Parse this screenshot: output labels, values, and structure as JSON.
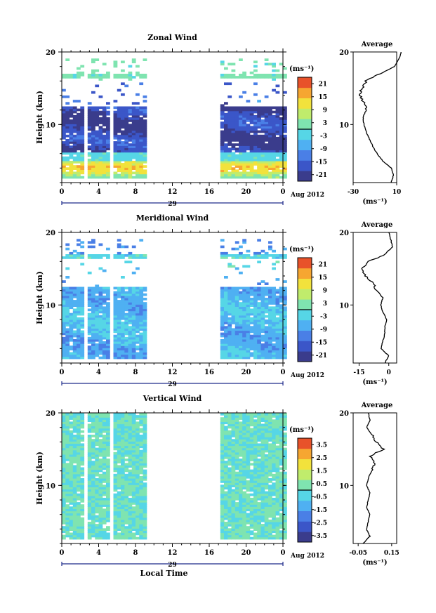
{
  "chart_data": [
    {
      "type": "heatmap",
      "title": "Zonal Wind",
      "ylabel": "Height (km)",
      "units": "(ms⁻¹)",
      "xticks": [
        "0",
        "4",
        "8",
        "12",
        "16",
        "20",
        "0"
      ],
      "xlim": [
        0,
        24
      ],
      "ylim": [
        2,
        20
      ],
      "yticks": [
        "20",
        "10"
      ],
      "date_label": "Aug 2012",
      "day_label": "29",
      "colorbar": {
        "min": -24,
        "max": 24,
        "ticks": [
          "21",
          "15",
          "9",
          "3",
          "-3",
          "-9",
          "-15",
          "-21"
        ]
      },
      "data_gaps_hours": [
        [
          2.4,
          2.6
        ],
        [
          5.2,
          5.6
        ],
        [
          9.0,
          17.2
        ]
      ],
      "structure": "Strong westerly (positive) winds 3-5 km, transitioning through zero near 5 km to strong easterlies (about -20 to -24 ms⁻¹) from 6 to 12 km, weak near-zero band near 16-17 km",
      "average_profile": {
        "title": "Average",
        "xlabel": "(ms⁻¹)",
        "xticks": [
          "-30",
          "10"
        ],
        "xlim": [
          -30,
          10
        ],
        "yticks": [
          "20",
          "10"
        ],
        "height_km": [
          2,
          3,
          4,
          5,
          6,
          7,
          8,
          9,
          10,
          11,
          12,
          13,
          14,
          15,
          16,
          17,
          18,
          19,
          20
        ],
        "values": [
          5,
          7,
          5,
          -3,
          -8,
          -12,
          -15,
          -18,
          -20,
          -21,
          -18,
          -20,
          -24,
          -22,
          -18,
          -5,
          8,
          12,
          14
        ]
      }
    },
    {
      "type": "heatmap",
      "title": "Meridional Wind",
      "ylabel": "Height (km)",
      "units": "(ms⁻¹)",
      "xticks": [
        "0",
        "4",
        "8",
        "12",
        "16",
        "20",
        "0"
      ],
      "xlim": [
        0,
        24
      ],
      "ylim": [
        2,
        20
      ],
      "yticks": [
        "20",
        "10"
      ],
      "date_label": "Aug 2012",
      "day_label": "29",
      "colorbar": {
        "min": -24,
        "max": 24,
        "ticks": [
          "21",
          "15",
          "9",
          "3",
          "-3",
          "-9",
          "-15",
          "-21"
        ]
      },
      "data_gaps_hours": [
        [
          2.4,
          2.6
        ],
        [
          5.2,
          5.6
        ],
        [
          9.0,
          17.2
        ]
      ],
      "structure": "Mostly weak southward (-3 to -9 ms⁻¹) meridional winds, patches near zero at 5-11 km",
      "average_profile": {
        "title": "Average",
        "xlabel": "(ms⁻¹)",
        "xticks": [
          "-15",
          "0"
        ],
        "xlim": [
          -18,
          4
        ],
        "yticks": [
          "20",
          "10"
        ],
        "height_km": [
          2,
          3,
          4,
          5,
          6,
          7,
          8,
          9,
          10,
          11,
          12,
          13,
          14,
          15,
          16,
          17,
          18,
          19,
          20
        ],
        "values": [
          -2,
          0,
          -4,
          -3,
          -2,
          -2,
          -1,
          -3,
          -4,
          -3,
          -6,
          -8,
          -12,
          -14,
          -10,
          -2,
          2,
          1,
          0
        ]
      }
    },
    {
      "type": "heatmap",
      "title": "Vertical Wind",
      "ylabel": "Height (km)",
      "units": "(ms⁻¹)",
      "xticks": [
        "0",
        "4",
        "8",
        "12",
        "16",
        "20",
        "0"
      ],
      "xlabel": "Local Time",
      "xlim": [
        0,
        24
      ],
      "ylim": [
        2,
        20
      ],
      "yticks": [
        "20",
        "10"
      ],
      "date_label": "Aug 2012",
      "day_label": "29",
      "colorbar": {
        "min": -4,
        "max": 4,
        "ticks": [
          "3.5",
          "2.5",
          "1.5",
          "0.5",
          "-0.5",
          "-1.5",
          "-2.5",
          "-3.5"
        ]
      },
      "data_gaps_hours": [
        [
          2.4,
          2.6
        ],
        [
          5.2,
          5.6
        ],
        [
          9.0,
          17.2
        ]
      ],
      "structure": "Vertical velocities close to zero everywhere (-0.5 to 0.5 ms⁻¹)",
      "average_profile": {
        "title": "Average",
        "xlabel": "(ms⁻¹)",
        "xticks": [
          "-0.05",
          "0.15"
        ],
        "xlim": [
          -0.08,
          0.18
        ],
        "yticks": [
          "20",
          "10"
        ],
        "height_km": [
          2,
          3,
          4,
          5,
          6,
          7,
          8,
          9,
          10,
          11,
          12,
          13,
          14,
          15,
          16,
          17,
          18,
          19,
          20
        ],
        "values": [
          -0.02,
          0.02,
          0.0,
          0.01,
          0.02,
          0.0,
          0.01,
          0.02,
          0.0,
          0.01,
          0.03,
          0.05,
          0.02,
          0.1,
          0.06,
          0.03,
          0.0,
          0.02,
          0.01
        ]
      }
    }
  ],
  "colors": {
    "colormap": [
      "#3a3c8c",
      "#3b56c8",
      "#4a7fe6",
      "#4fb0f2",
      "#56d6e6",
      "#7fe4b0",
      "#c0ec6c",
      "#f2e23c",
      "#f6a631",
      "#e8522a"
    ],
    "frame": "#000000",
    "axis_accent": "#1e2a8a"
  }
}
